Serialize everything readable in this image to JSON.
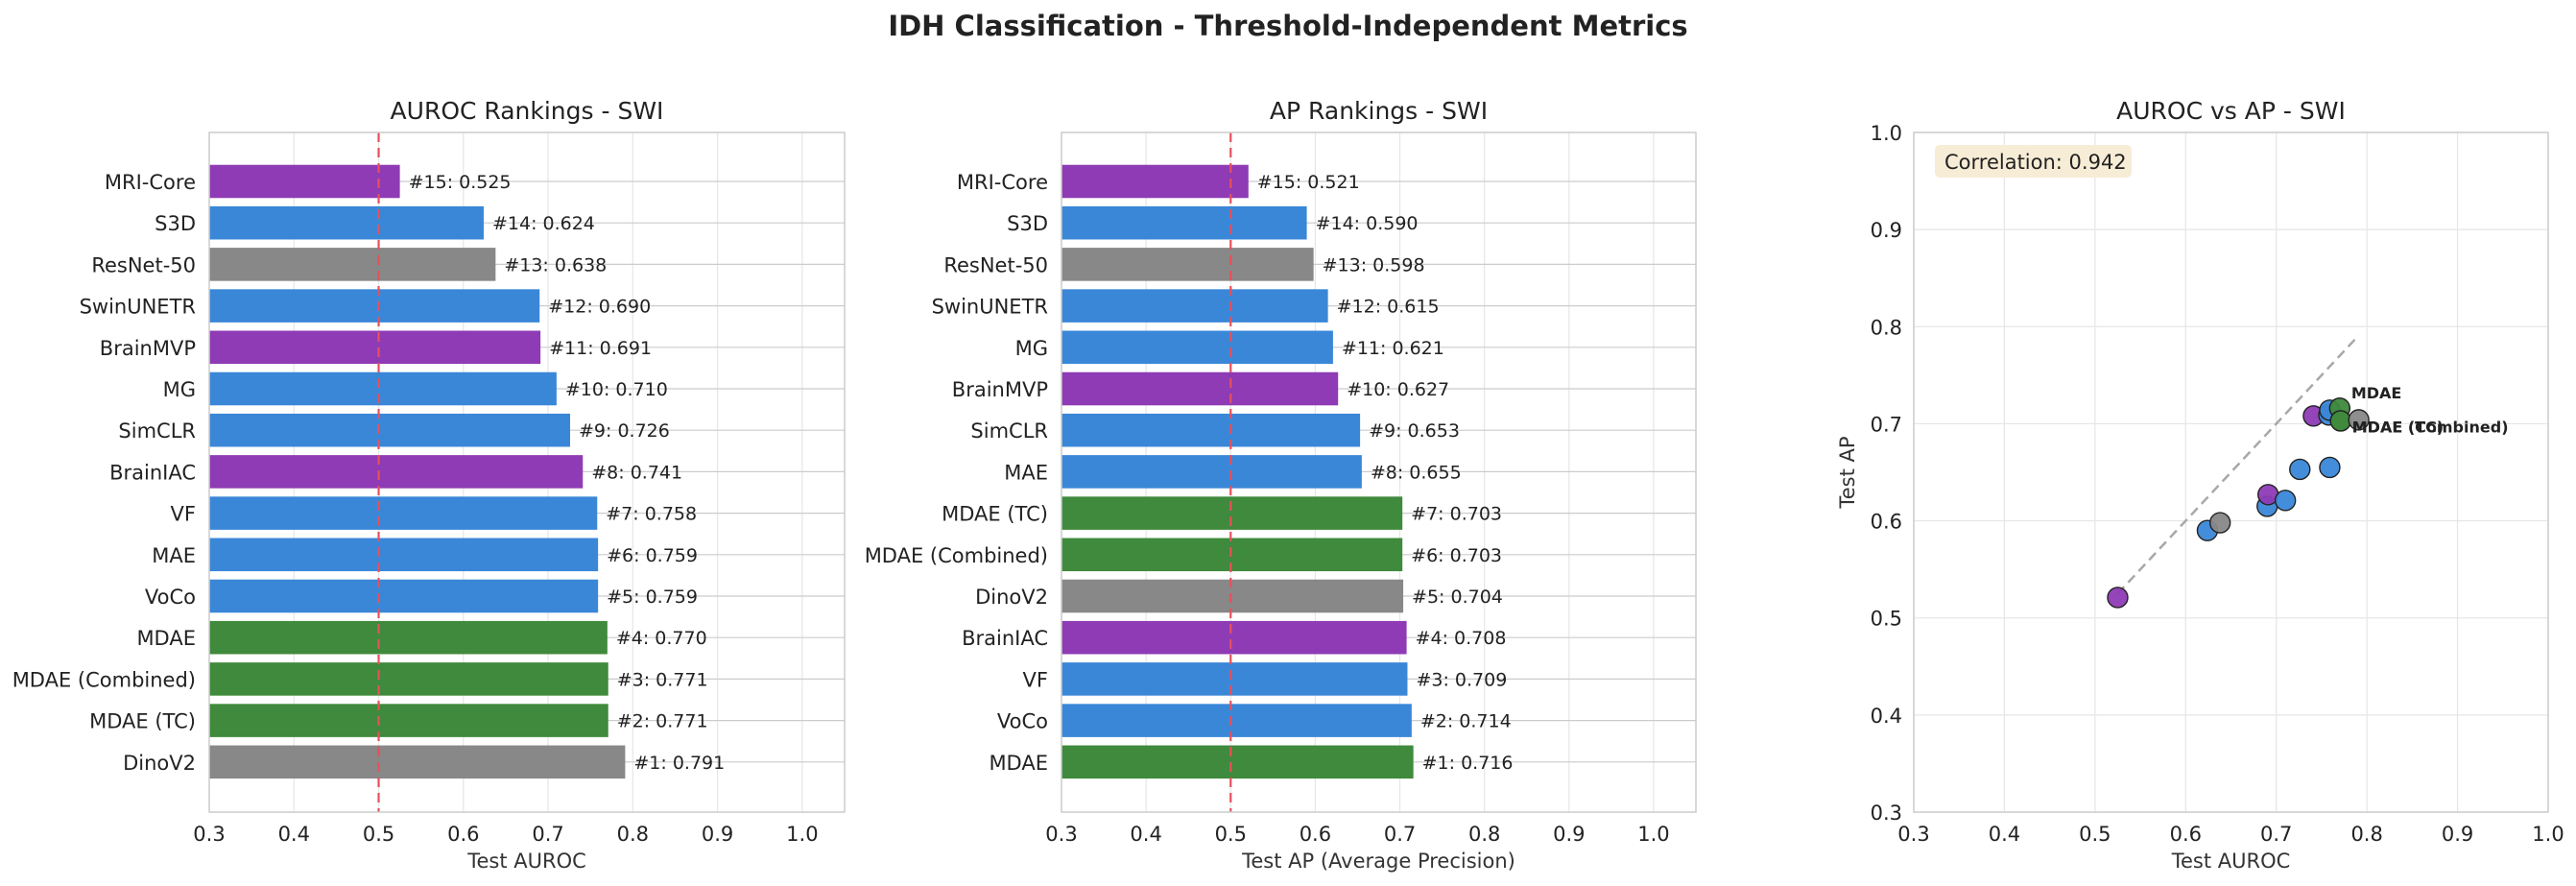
{
  "suptitle": "IDH Classification - Threshold-Independent Metrics",
  "colors": {
    "green": "#3f8a3c",
    "blue": "#3a87d8",
    "purple": "#8e3bb5",
    "gray": "#888888",
    "threshold": "#e8505b",
    "grid": "#e6e6e6",
    "frame": "#cccccc",
    "diagonal": "#a8a8a8",
    "corr_box": "#f7ecd5"
  },
  "chart_data": [
    {
      "type": "bar",
      "orientation": "horizontal",
      "title": "AUROC Rankings - SWI",
      "xlabel": "Test AUROC",
      "ylabel": "",
      "xlim": [
        0.3,
        1.05
      ],
      "xticks": [
        "0.3",
        "0.4",
        "0.5",
        "0.6",
        "0.7",
        "0.8",
        "0.9",
        "1.0"
      ],
      "reference_line": 0.5,
      "grid": true,
      "categories": [
        "MRI-Core",
        "S3D",
        "ResNet-50",
        "SwinUNETR",
        "BrainMVP",
        "MG",
        "SimCLR",
        "BrainIAC",
        "VF",
        "MAE",
        "VoCo",
        "MDAE",
        "MDAE (Combined)",
        "MDAE (TC)",
        "DinoV2"
      ],
      "values": [
        0.525,
        0.624,
        0.638,
        0.69,
        0.691,
        0.71,
        0.726,
        0.741,
        0.758,
        0.759,
        0.759,
        0.77,
        0.771,
        0.771,
        0.791
      ],
      "bar_colors": [
        "purple",
        "blue",
        "gray",
        "blue",
        "purple",
        "blue",
        "blue",
        "purple",
        "blue",
        "blue",
        "blue",
        "green",
        "green",
        "green",
        "gray"
      ],
      "labels": [
        "#15: 0.525",
        "#14: 0.624",
        "#13: 0.638",
        "#12: 0.690",
        "#11: 0.691",
        "#10: 0.710",
        "#9: 0.726",
        "#8: 0.741",
        "#7: 0.758",
        "#6: 0.759",
        "#5: 0.759",
        "#4: 0.770",
        "#3: 0.771",
        "#2: 0.771",
        "#1: 0.791"
      ]
    },
    {
      "type": "bar",
      "orientation": "horizontal",
      "title": "AP Rankings - SWI",
      "xlabel": "Test AP (Average Precision)",
      "ylabel": "",
      "xlim": [
        0.3,
        1.05
      ],
      "xticks": [
        "0.3",
        "0.4",
        "0.5",
        "0.6",
        "0.7",
        "0.8",
        "0.9",
        "1.0"
      ],
      "reference_line": 0.5,
      "grid": true,
      "categories": [
        "MRI-Core",
        "S3D",
        "ResNet-50",
        "SwinUNETR",
        "MG",
        "BrainMVP",
        "SimCLR",
        "MAE",
        "MDAE (TC)",
        "MDAE (Combined)",
        "DinoV2",
        "BrainIAC",
        "VF",
        "VoCo",
        "MDAE"
      ],
      "values": [
        0.521,
        0.59,
        0.598,
        0.615,
        0.621,
        0.627,
        0.653,
        0.655,
        0.703,
        0.703,
        0.704,
        0.708,
        0.709,
        0.714,
        0.716
      ],
      "bar_colors": [
        "purple",
        "blue",
        "gray",
        "blue",
        "blue",
        "purple",
        "blue",
        "blue",
        "green",
        "green",
        "gray",
        "purple",
        "blue",
        "blue",
        "green"
      ],
      "labels": [
        "#15: 0.521",
        "#14: 0.590",
        "#13: 0.598",
        "#12: 0.615",
        "#11: 0.621",
        "#10: 0.627",
        "#9: 0.653",
        "#8: 0.655",
        "#7: 0.703",
        "#6: 0.703",
        "#5: 0.704",
        "#4: 0.708",
        "#3: 0.709",
        "#2: 0.714",
        "#1: 0.716"
      ]
    },
    {
      "type": "scatter",
      "title": "AUROC vs AP - SWI",
      "xlabel": "Test AUROC",
      "ylabel": "Test AP",
      "xlim": [
        0.3,
        1.0
      ],
      "ylim": [
        0.3,
        1.0
      ],
      "xticks": [
        "0.3",
        "0.4",
        "0.5",
        "0.6",
        "0.7",
        "0.8",
        "0.9",
        "1.0"
      ],
      "yticks": [
        "0.3",
        "0.4",
        "0.5",
        "0.6",
        "0.7",
        "0.8",
        "0.9",
        "1.0"
      ],
      "grid": true,
      "diagonal": [
        [
          0.525,
          0.525
        ],
        [
          0.791,
          0.791
        ]
      ],
      "correlation_text": "Correlation: 0.942",
      "points": [
        {
          "x": 0.525,
          "y": 0.521,
          "color": "purple"
        },
        {
          "x": 0.624,
          "y": 0.59,
          "color": "blue"
        },
        {
          "x": 0.638,
          "y": 0.598,
          "color": "gray"
        },
        {
          "x": 0.69,
          "y": 0.615,
          "color": "blue"
        },
        {
          "x": 0.691,
          "y": 0.627,
          "color": "purple"
        },
        {
          "x": 0.71,
          "y": 0.621,
          "color": "blue"
        },
        {
          "x": 0.726,
          "y": 0.653,
          "color": "blue"
        },
        {
          "x": 0.741,
          "y": 0.708,
          "color": "purple"
        },
        {
          "x": 0.758,
          "y": 0.709,
          "color": "blue"
        },
        {
          "x": 0.759,
          "y": 0.655,
          "color": "blue"
        },
        {
          "x": 0.759,
          "y": 0.714,
          "color": "blue"
        },
        {
          "x": 0.77,
          "y": 0.716,
          "color": "green"
        },
        {
          "x": 0.771,
          "y": 0.703,
          "color": "green"
        },
        {
          "x": 0.771,
          "y": 0.703,
          "color": "green"
        },
        {
          "x": 0.791,
          "y": 0.704,
          "color": "gray"
        }
      ],
      "annotations": [
        {
          "text": "MDAE",
          "x": 0.77,
          "y": 0.716
        },
        {
          "text": "MDAE (TC)",
          "x": 0.771,
          "y": 0.703
        },
        {
          "text": "MDAE (Combined)",
          "x": 0.771,
          "y": 0.703
        }
      ]
    }
  ]
}
